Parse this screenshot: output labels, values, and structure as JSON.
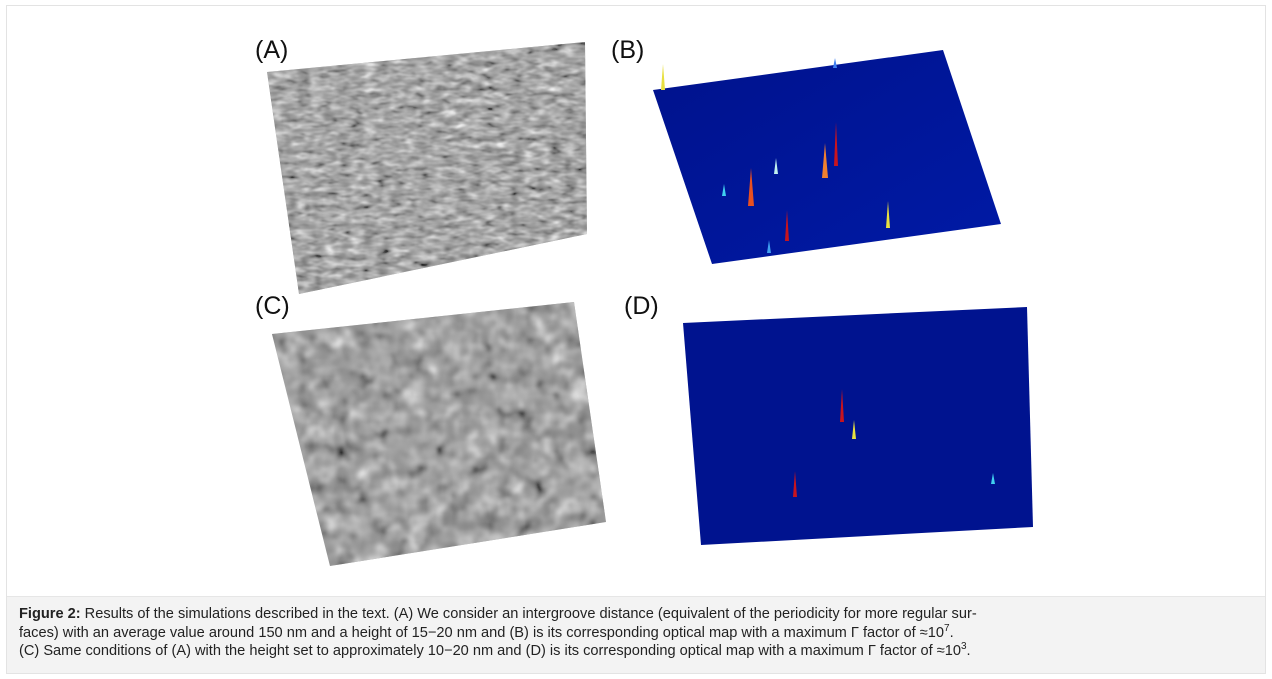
{
  "figure": {
    "panels": [
      {
        "id": "A",
        "label": "(A)"
      },
      {
        "id": "B",
        "label": "(B)"
      },
      {
        "id": "C",
        "label": "(C)"
      },
      {
        "id": "D",
        "label": "(D)"
      }
    ],
    "colors": {
      "surface_gray": "#8a8a8a",
      "map_blue": "#00128c",
      "peak_red": "#c8141e",
      "peak_yellow": "#e8e040",
      "peak_cyan": "#40d0f0"
    }
  },
  "caption": {
    "figure_label": "Figure 2:",
    "line1": " Results of the simulations described in the text. (A) We consider an intergroove distance (equivalent of the periodicity for more regular sur-",
    "line2_pre": "faces) with an average value around 150 nm and a height of 15−20 nm and (B) is its corresponding optical map with a maximum Γ factor of ≈10",
    "line2_exp": "7",
    "line2_post": ".",
    "line3_pre": "(C) Same conditions of (A) with the height set to approximately 10−20 nm and (D) is its corresponding optical map with a maximum Γ factor of ≈10",
    "line3_exp": "3",
    "line3_post": "."
  }
}
